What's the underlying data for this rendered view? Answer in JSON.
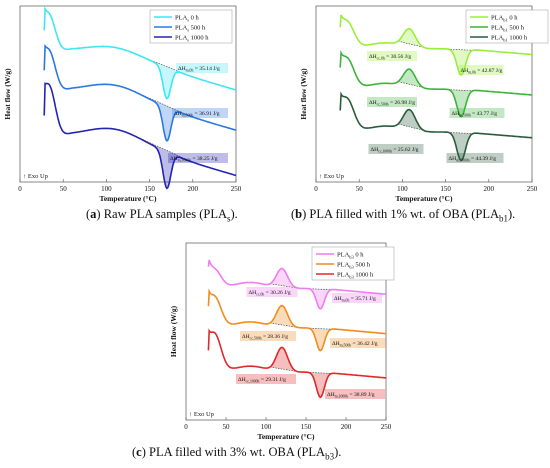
{
  "captions": [
    {
      "letter": "a",
      "text": " Raw PLA samples (PLA",
      "sub": "s",
      "tail": ")."
    },
    {
      "letter": "b",
      "text": " PLA filled with 1% wt. of OBA (PLA",
      "sub": "b1",
      "tail": ")."
    },
    {
      "letter": "c",
      "text": " PLA filled with 3% wt. OBA (PLA",
      "sub": "b3",
      "tail": ")."
    }
  ],
  "chart_data": [
    {
      "type": "line",
      "panel": "a",
      "xlabel": "Temperature (°C)",
      "ylabel": "Heat flow (W/g)",
      "xlim": [
        0,
        250
      ],
      "xticks": [
        0,
        50,
        100,
        150,
        200,
        250
      ],
      "exo_label": "↑ Exo Up",
      "legend_position": "top-right",
      "series": [
        {
          "name": "PLA",
          "sub": "s",
          "suffix": " 0 h",
          "color": "#3ee6f4"
        },
        {
          "name": "PLA",
          "sub": "s",
          "suffix": " 500 h",
          "color": "#2c78e0"
        },
        {
          "name": "PLA",
          "sub": "s",
          "suffix": " 1000 h",
          "color": "#2424b4"
        }
      ],
      "annotations": [
        {
          "text": "ΔH",
          "sub": "m,0h",
          "value": " = 35.14 J/g",
          "series": 0
        },
        {
          "text": "ΔH",
          "sub": "m,500h",
          "value": " = 36.91 J/g",
          "series": 1
        },
        {
          "text": "ΔH",
          "sub": "m,1000h",
          "value": " = 38.25 J/g",
          "series": 2
        }
      ]
    },
    {
      "type": "line",
      "panel": "b",
      "xlabel": "Temperature (°C)",
      "ylabel": "Heat flow (W/g)",
      "xlim": [
        0,
        250
      ],
      "xticks": [
        0,
        50,
        100,
        150,
        200,
        250
      ],
      "exo_label": "↑ Exo Up",
      "legend_position": "top-right",
      "series": [
        {
          "name": "PLA",
          "sub": "b1",
          "suffix": " 0 h",
          "color": "#9aee3a"
        },
        {
          "name": "PLA",
          "sub": "b1",
          "suffix": " 500 h",
          "color": "#3cb43c"
        },
        {
          "name": "PLA",
          "sub": "b1",
          "suffix": " 1000 h",
          "color": "#2a5c3a"
        }
      ],
      "annotations": [
        {
          "text": "ΔH",
          "sub": "cc,0h",
          "value": " = 30.56 J/g",
          "series": 0
        },
        {
          "text": "ΔH",
          "sub": "m,0h",
          "value": " = 42.87 J/g",
          "series": 0
        },
        {
          "text": "ΔH",
          "sub": "cc,500h",
          "value": " = 26.98 J/g",
          "series": 1
        },
        {
          "text": "ΔH",
          "sub": "m,500h",
          "value": " = 43.77 J/g",
          "series": 1
        },
        {
          "text": "ΔH",
          "sub": "cc,1000h",
          "value": " = 25.62 J/g",
          "series": 2
        },
        {
          "text": "ΔH",
          "sub": "m,1000h",
          "value": " = 44.39 J/g",
          "series": 2
        }
      ]
    },
    {
      "type": "line",
      "panel": "c",
      "xlabel": "Temperature (°C)",
      "ylabel": "Heat flow (W/g)",
      "xlim": [
        0,
        250
      ],
      "xticks": [
        0,
        50,
        100,
        150,
        200,
        250
      ],
      "exo_label": "↑ Exo Up",
      "legend_position": "top-right",
      "series": [
        {
          "name": "PLA",
          "sub": "b3",
          "suffix": " 0 h",
          "color": "#f07cf0"
        },
        {
          "name": "PLA",
          "sub": "b3",
          "suffix": " 500 h",
          "color": "#f08c1e"
        },
        {
          "name": "PLA",
          "sub": "b3",
          "suffix": " 1000 h",
          "color": "#e02828"
        }
      ],
      "annotations": [
        {
          "text": "ΔH",
          "sub": "cc,0h",
          "value": " = 30.26 J/g",
          "series": 0
        },
        {
          "text": "ΔH",
          "sub": "m,0h",
          "value": " = 35.71 J/g",
          "series": 0
        },
        {
          "text": "ΔH",
          "sub": "cc,500h",
          "value": " = 28.36 J/g",
          "series": 1
        },
        {
          "text": "ΔH",
          "sub": "m,500h",
          "value": " = 36.42 J/g",
          "series": 1
        },
        {
          "text": "ΔH",
          "sub": "cc,1000h",
          "value": " = 29.31 J/g",
          "series": 2
        },
        {
          "text": "ΔH",
          "sub": "m,1000h",
          "value": " = 38.89 J/g",
          "series": 2
        }
      ]
    }
  ]
}
